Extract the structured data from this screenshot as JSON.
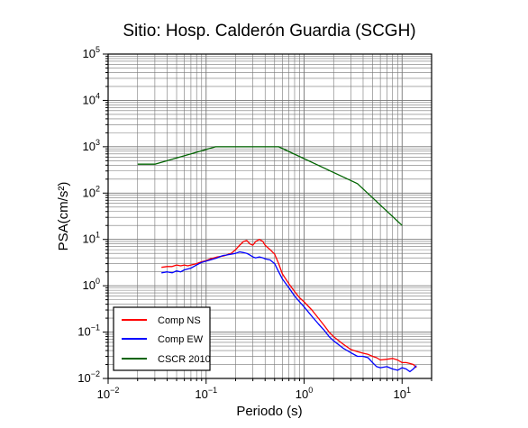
{
  "chart_data": {
    "type": "line",
    "title": "Sitio: Hosp. Calderón Guardia (SCGH)",
    "xlabel": "Periodo (s)",
    "ylabel": "PSA(cm/s²)",
    "x_scale": "log",
    "y_scale": "log",
    "xlim": [
      0.01,
      20
    ],
    "ylim": [
      0.01,
      100000
    ],
    "x_ticks": [
      {
        "base": "10",
        "exp": "−2",
        "value": 0.01
      },
      {
        "base": "10",
        "exp": "−1",
        "value": 0.1
      },
      {
        "base": "10",
        "exp": "0",
        "value": 1
      },
      {
        "base": "10",
        "exp": "1",
        "value": 10
      }
    ],
    "y_ticks": [
      {
        "base": "10",
        "exp": "−2",
        "value": 0.01
      },
      {
        "base": "10",
        "exp": "−1",
        "value": 0.1
      },
      {
        "base": "10",
        "exp": "0",
        "value": 1
      },
      {
        "base": "10",
        "exp": "1",
        "value": 10
      },
      {
        "base": "10",
        "exp": "2",
        "value": 100
      },
      {
        "base": "10",
        "exp": "3",
        "value": 1000
      },
      {
        "base": "10",
        "exp": "4",
        "value": 10000
      },
      {
        "base": "10",
        "exp": "5",
        "value": 100000
      }
    ],
    "grid": true,
    "legend_position": "bottom-left",
    "series": [
      {
        "name": "Comp NS",
        "color": "#ff0000",
        "x": [
          0.035,
          0.04,
          0.045,
          0.05,
          0.055,
          0.06,
          0.065,
          0.07,
          0.08,
          0.09,
          0.1,
          0.11,
          0.12,
          0.13,
          0.14,
          0.15,
          0.16,
          0.18,
          0.2,
          0.22,
          0.24,
          0.26,
          0.28,
          0.3,
          0.32,
          0.35,
          0.38,
          0.4,
          0.45,
          0.5,
          0.55,
          0.6,
          0.7,
          0.8,
          0.9,
          1.0,
          1.2,
          1.4,
          1.6,
          1.8,
          2.0,
          2.5,
          3.0,
          3.5,
          4.0,
          4.5,
          5.0,
          5.5,
          6.0,
          7.0,
          8.0,
          9.0,
          10.0,
          11.0,
          12.0,
          13.0,
          14.0
        ],
        "y": [
          2.5,
          2.6,
          2.6,
          2.8,
          2.7,
          2.8,
          2.7,
          2.8,
          3.0,
          3.3,
          3.5,
          3.8,
          4.0,
          4.2,
          4.3,
          4.4,
          4.6,
          5.0,
          6.0,
          7.5,
          9.0,
          9.5,
          8.0,
          7.5,
          9.0,
          10.0,
          9.0,
          7.5,
          6.0,
          4.8,
          3.0,
          1.8,
          1.1,
          0.75,
          0.55,
          0.45,
          0.3,
          0.2,
          0.14,
          0.1,
          0.08,
          0.055,
          0.042,
          0.038,
          0.035,
          0.033,
          0.03,
          0.028,
          0.025,
          0.026,
          0.027,
          0.025,
          0.022,
          0.022,
          0.021,
          0.02,
          0.017
        ]
      },
      {
        "name": "Comp EW",
        "color": "#0000ff",
        "x": [
          0.035,
          0.04,
          0.045,
          0.05,
          0.055,
          0.06,
          0.065,
          0.07,
          0.08,
          0.09,
          0.1,
          0.11,
          0.12,
          0.13,
          0.14,
          0.15,
          0.16,
          0.18,
          0.2,
          0.22,
          0.24,
          0.26,
          0.28,
          0.3,
          0.32,
          0.35,
          0.38,
          0.4,
          0.45,
          0.5,
          0.55,
          0.6,
          0.7,
          0.8,
          0.9,
          1.0,
          1.2,
          1.4,
          1.6,
          1.8,
          2.0,
          2.5,
          3.0,
          3.5,
          4.0,
          4.5,
          5.0,
          5.5,
          6.0,
          7.0,
          8.0,
          9.0,
          10.0,
          11.0,
          12.0,
          13.0,
          14.0
        ],
        "y": [
          1.9,
          2.0,
          1.9,
          2.1,
          2.0,
          2.2,
          2.3,
          2.4,
          2.8,
          3.2,
          3.4,
          3.6,
          3.8,
          4.0,
          4.3,
          4.5,
          4.6,
          4.8,
          5.0,
          5.4,
          5.2,
          5.0,
          4.6,
          4.2,
          4.0,
          4.2,
          4.0,
          3.8,
          3.6,
          3.0,
          2.0,
          1.4,
          0.9,
          0.6,
          0.45,
          0.35,
          0.22,
          0.15,
          0.11,
          0.08,
          0.065,
          0.045,
          0.036,
          0.03,
          0.03,
          0.028,
          0.022,
          0.018,
          0.017,
          0.018,
          0.016,
          0.015,
          0.017,
          0.016,
          0.014,
          0.016,
          0.019
        ]
      },
      {
        "name": "CSCR 2010",
        "color": "#006400",
        "x": [
          0.02,
          0.03,
          0.125,
          0.55,
          3.5,
          10.0
        ],
        "y": [
          420,
          420,
          1000,
          1000,
          160,
          20
        ]
      }
    ]
  }
}
